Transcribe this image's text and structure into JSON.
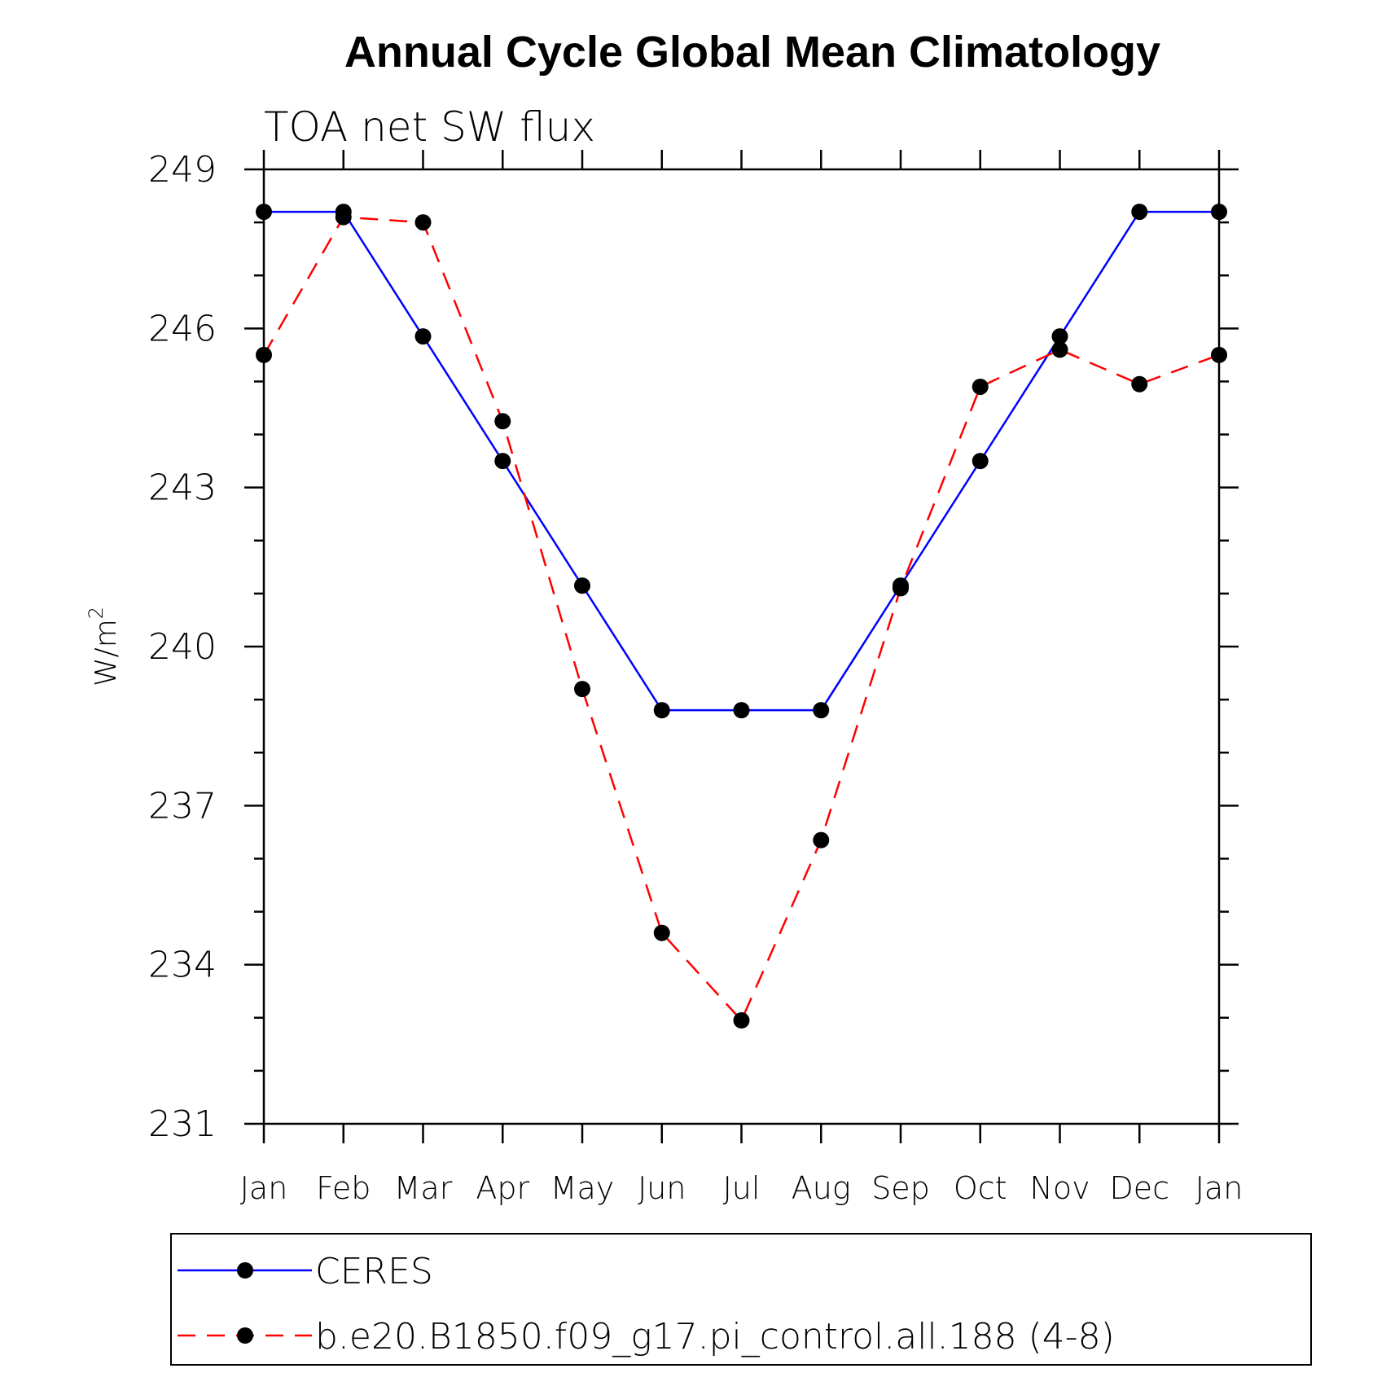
{
  "chart_data": {
    "type": "line",
    "title": "Annual Cycle Global Mean Climatology",
    "subtitle": "TOA net SW flux",
    "ylabel": "W/m",
    "ylabel_superscript": "2",
    "ylim": [
      231,
      249
    ],
    "yticks": [
      "231",
      "234",
      "237",
      "240",
      "243",
      "246",
      "249"
    ],
    "categories": [
      "Jan",
      "Feb",
      "Mar",
      "Apr",
      "May",
      "Jun",
      "Jul",
      "Aug",
      "Sep",
      "Oct",
      "Nov",
      "Dec",
      "Jan"
    ],
    "series": [
      {
        "name": "CERES",
        "color": "#0000ff",
        "line_style": "solid",
        "values": [
          248.2,
          248.2,
          245.85,
          243.5,
          241.15,
          238.8,
          238.8,
          238.8,
          241.15,
          243.5,
          245.85,
          248.2,
          248.2
        ]
      },
      {
        "name": "b.e20.B1850.f09_g17.pi_control.all.188 (4-8)",
        "color": "#ff0000",
        "line_style": "dashed",
        "values": [
          245.5,
          248.1,
          248.0,
          244.25,
          239.2,
          234.6,
          232.95,
          236.35,
          241.1,
          244.9,
          245.6,
          244.95,
          245.5
        ]
      }
    ],
    "marker": "filled-circle",
    "marker_color": "#000000",
    "legend_position": "bottom"
  }
}
